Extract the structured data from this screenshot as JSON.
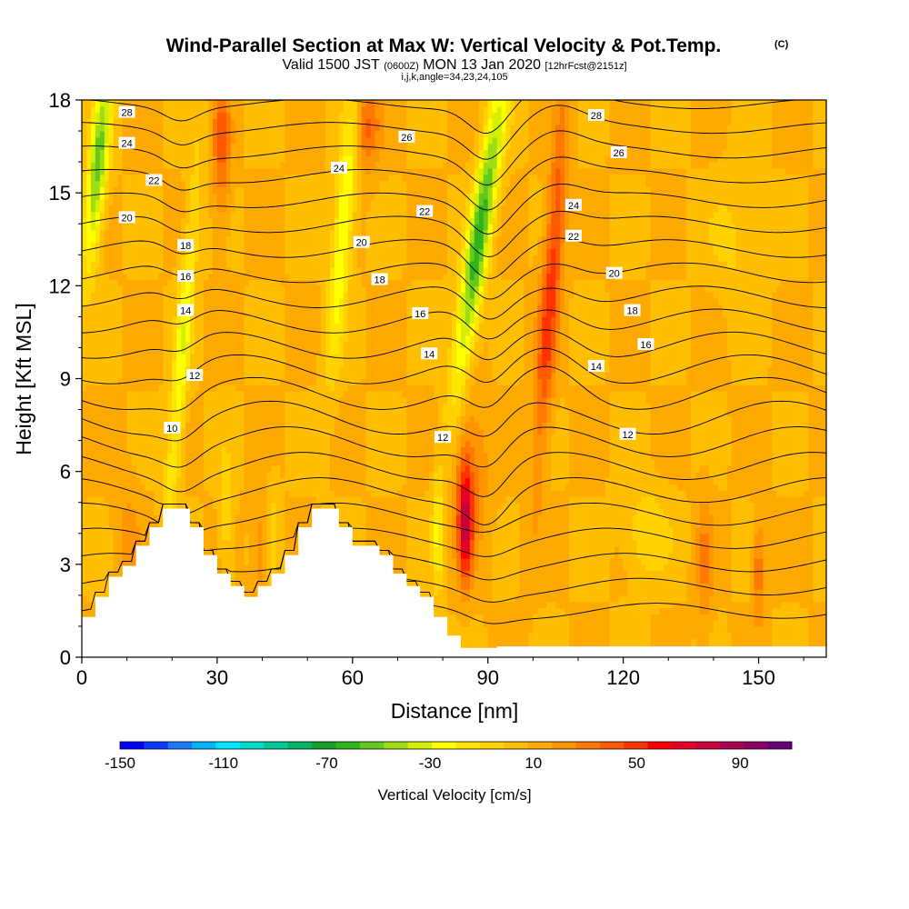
{
  "header": {
    "title": "Wind-Parallel Section at Max W: Vertical Velocity & Pot.Temp.",
    "copyright": "(C)",
    "valid_prefix": "Valid 1500 JST",
    "valid_utc": "(0600Z)",
    "valid_date": "MON 13 Jan 2020",
    "forecast": "[12hrFcst@2151z]",
    "ijk": "i,j,k,angle=34,23,24,105"
  },
  "chart_data": {
    "type": "heatmap",
    "xlabel": "Distance [nm]",
    "ylabel": "Height [Kft MSL]",
    "xlim": [
      0,
      165
    ],
    "ylim": [
      0,
      18
    ],
    "xticks": [
      0,
      30,
      60,
      90,
      120,
      150
    ],
    "yticks": [
      0,
      3,
      6,
      9,
      12,
      15,
      18
    ],
    "grid": false,
    "colorbar": {
      "label": "Vertical Velocity [cm/s]",
      "min": -150,
      "max": 110,
      "tick_values": [
        -150,
        -110,
        -70,
        -30,
        10,
        50,
        90
      ],
      "tick_labels": [
        "-150",
        "-110",
        "-70",
        "-30",
        "10",
        "50",
        "90"
      ],
      "colors": [
        "#0000ff",
        "#0a3cff",
        "#1e78ff",
        "#00b4ff",
        "#00e6ff",
        "#00dcc8",
        "#00c896",
        "#00b464",
        "#14a028",
        "#32b41e",
        "#64c81e",
        "#a0dc14",
        "#d2f000",
        "#ffff00",
        "#ffe600",
        "#ffd200",
        "#ffbe00",
        "#ffaa00",
        "#ff9600",
        "#ff7800",
        "#ff5a00",
        "#ff3200",
        "#ff0000",
        "#e60028",
        "#c8003c",
        "#aa0050",
        "#8c0064",
        "#640078"
      ]
    },
    "terrain_kft": [
      [
        0,
        1.3
      ],
      [
        3,
        1.3
      ],
      [
        3,
        1.95
      ],
      [
        6,
        1.95
      ],
      [
        6,
        2.6
      ],
      [
        9,
        2.6
      ],
      [
        9,
        2.95
      ],
      [
        12,
        2.95
      ],
      [
        12,
        3.6
      ],
      [
        15,
        3.6
      ],
      [
        15,
        4.2
      ],
      [
        18,
        4.2
      ],
      [
        18,
        4.8
      ],
      [
        24,
        4.8
      ],
      [
        24,
        4.2
      ],
      [
        27,
        4.2
      ],
      [
        27,
        3.3
      ],
      [
        30,
        3.3
      ],
      [
        30,
        2.7
      ],
      [
        33,
        2.7
      ],
      [
        33,
        2.3
      ],
      [
        36,
        2.3
      ],
      [
        36,
        1.95
      ],
      [
        39,
        1.95
      ],
      [
        39,
        2.3
      ],
      [
        42,
        2.3
      ],
      [
        42,
        2.7
      ],
      [
        45,
        2.7
      ],
      [
        45,
        3.3
      ],
      [
        48,
        3.3
      ],
      [
        48,
        4.2
      ],
      [
        51,
        4.2
      ],
      [
        51,
        4.8
      ],
      [
        57,
        4.8
      ],
      [
        57,
        4.2
      ],
      [
        60,
        4.2
      ],
      [
        60,
        3.6
      ],
      [
        66,
        3.6
      ],
      [
        66,
        3.3
      ],
      [
        69,
        3.3
      ],
      [
        69,
        2.7
      ],
      [
        72,
        2.7
      ],
      [
        72,
        2.3
      ],
      [
        75,
        2.3
      ],
      [
        75,
        1.95
      ],
      [
        78,
        1.95
      ],
      [
        78,
        1.3
      ],
      [
        81,
        1.3
      ],
      [
        81,
        0.7
      ],
      [
        84,
        0.7
      ],
      [
        84,
        0.3
      ],
      [
        92,
        0.3
      ],
      [
        92,
        0.35
      ],
      [
        165,
        0.35
      ]
    ],
    "velocity_features": [
      {
        "x": 3.5,
        "y": 15.8,
        "sx": 2.2,
        "sy": 3.2,
        "slope": 0.6,
        "value": -60
      },
      {
        "x": 22,
        "y": 9.5,
        "sx": 1.8,
        "sy": 6.0,
        "slope": 0.55,
        "value": -35
      },
      {
        "x": 58,
        "y": 14.0,
        "sx": 2.2,
        "sy": 4.5,
        "slope": 0.55,
        "value": -40
      },
      {
        "x": 88,
        "y": 13.5,
        "sx": 2.6,
        "sy": 5.0,
        "slope": 1.0,
        "value": -70
      },
      {
        "x": 79,
        "y": 4.0,
        "sx": 1.2,
        "sy": 1.8,
        "slope": 0,
        "value": -30
      },
      {
        "x": 32,
        "y": 4.5,
        "sx": 1.6,
        "sy": 2.0,
        "slope": 0,
        "value": -18
      },
      {
        "x": 42,
        "y": 4.0,
        "sx": 1.6,
        "sy": 2.0,
        "slope": 0,
        "value": -15
      },
      {
        "x": 104,
        "y": 12.0,
        "sx": 2.2,
        "sy": 6.0,
        "slope": 0.5,
        "value": 42
      },
      {
        "x": 85,
        "y": 4.3,
        "sx": 1.6,
        "sy": 1.8,
        "slope": 0,
        "value": 60
      },
      {
        "x": 86,
        "y": 6.0,
        "sx": 4.0,
        "sy": 2.5,
        "slope": 0,
        "value": 22
      },
      {
        "x": 31,
        "y": 16.5,
        "sx": 2.0,
        "sy": 2.5,
        "slope": 0,
        "value": 30
      },
      {
        "x": 63,
        "y": 17.2,
        "sx": 3.0,
        "sy": 1.5,
        "slope": 0,
        "value": 30
      },
      {
        "x": 40,
        "y": 3.5,
        "sx": 2.0,
        "sy": 2.0,
        "slope": 0,
        "value": 18
      },
      {
        "x": 150,
        "y": 2.8,
        "sx": 1.2,
        "sy": 1.6,
        "slope": 0,
        "value": 28
      },
      {
        "x": 138,
        "y": 3.0,
        "sx": 1.8,
        "sy": 2.5,
        "slope": 0,
        "value": 18
      },
      {
        "x": 125,
        "y": 4.0,
        "sx": 5.0,
        "sy": 1.5,
        "slope": 0,
        "value": -18
      },
      {
        "x": 145,
        "y": 13.5,
        "sx": 6.0,
        "sy": 2.0,
        "slope": 0,
        "value": -12
      },
      {
        "x": 10,
        "y": 3.5,
        "sx": 3.0,
        "sy": 2.5,
        "slope": 0,
        "value": 12
      }
    ],
    "theta_contour_labels": [
      {
        "text": "28",
        "x": 10,
        "y": 17.6
      },
      {
        "text": "24",
        "x": 10,
        "y": 16.6
      },
      {
        "text": "22",
        "x": 16,
        "y": 15.4
      },
      {
        "text": "20",
        "x": 10,
        "y": 14.2
      },
      {
        "text": "18",
        "x": 23,
        "y": 13.3
      },
      {
        "text": "16",
        "x": 23,
        "y": 12.3
      },
      {
        "text": "14",
        "x": 23,
        "y": 11.2
      },
      {
        "text": "12",
        "x": 25,
        "y": 9.1
      },
      {
        "text": "10",
        "x": 20,
        "y": 7.4
      },
      {
        "text": "24",
        "x": 57,
        "y": 15.8
      },
      {
        "text": "26",
        "x": 72,
        "y": 16.8
      },
      {
        "text": "22",
        "x": 76,
        "y": 14.4
      },
      {
        "text": "20",
        "x": 62,
        "y": 13.4
      },
      {
        "text": "18",
        "x": 66,
        "y": 12.2
      },
      {
        "text": "16",
        "x": 75,
        "y": 11.1
      },
      {
        "text": "14",
        "x": 77,
        "y": 9.8
      },
      {
        "text": "12",
        "x": 80,
        "y": 7.1
      },
      {
        "text": "28",
        "x": 114,
        "y": 17.5
      },
      {
        "text": "26",
        "x": 119,
        "y": 16.3
      },
      {
        "text": "24",
        "x": 109,
        "y": 14.6
      },
      {
        "text": "22",
        "x": 109,
        "y": 13.6
      },
      {
        "text": "20",
        "x": 118,
        "y": 12.4
      },
      {
        "text": "18",
        "x": 122,
        "y": 11.2
      },
      {
        "text": "16",
        "x": 125,
        "y": 10.1
      },
      {
        "text": "14",
        "x": 114,
        "y": 9.4
      },
      {
        "text": "12",
        "x": 121,
        "y": 7.2
      }
    ]
  }
}
